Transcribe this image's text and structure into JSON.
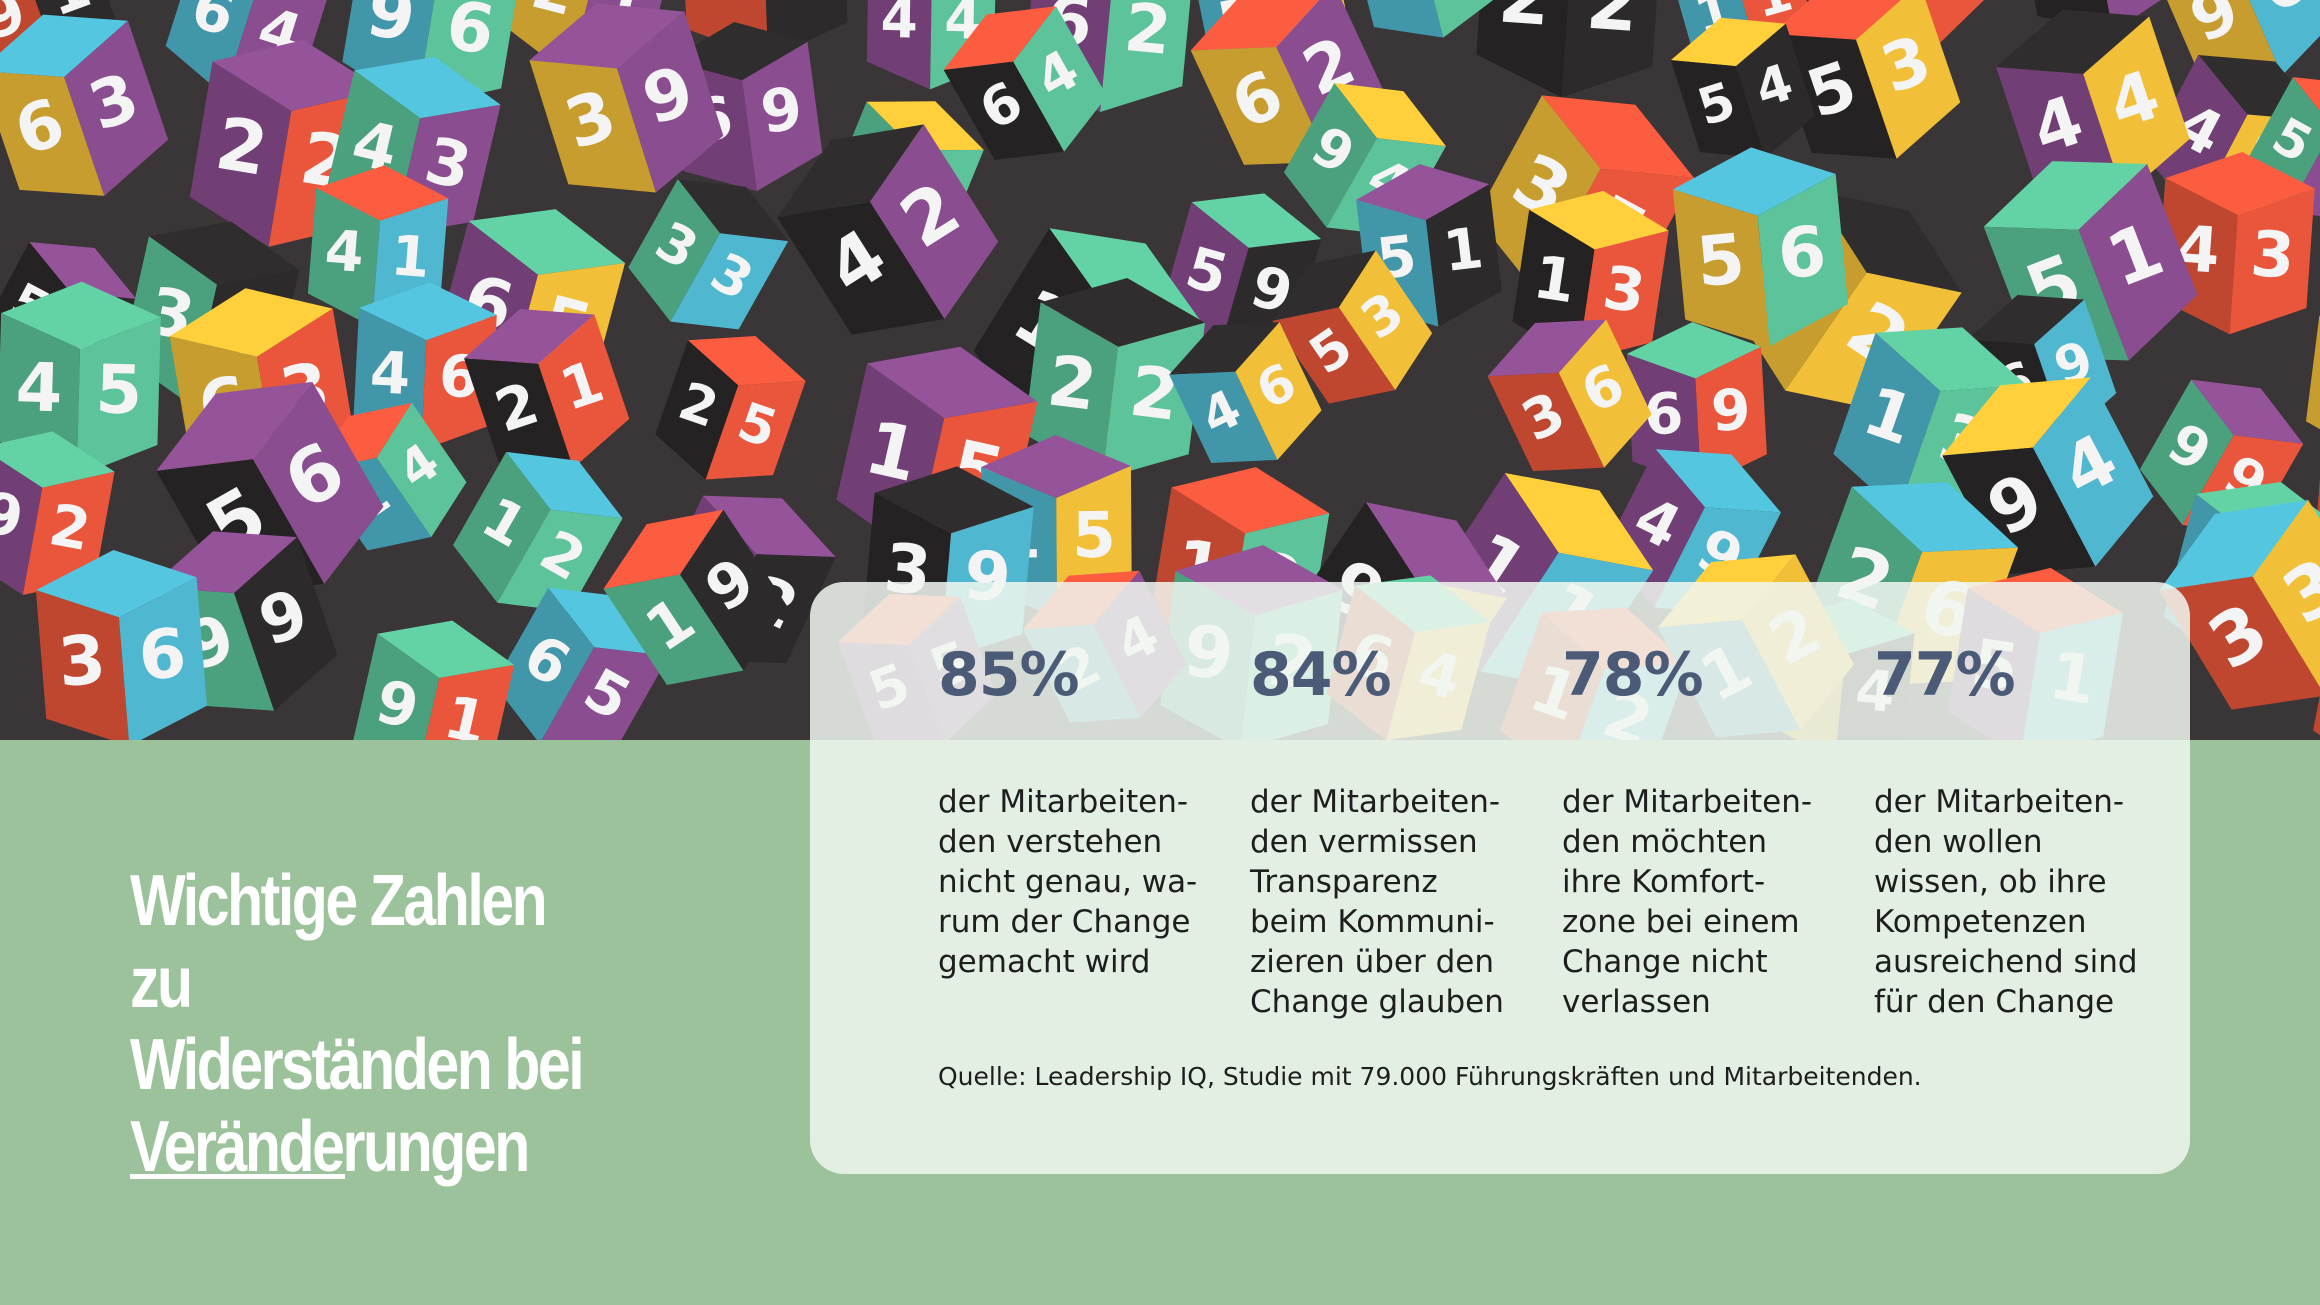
{
  "title": "Wichtige Zahlen zu\nWiderständen bei\nVeränderungen",
  "stats": [
    {
      "value": "85%",
      "text": "der Mitarbeiten-\nden verstehen\nnicht genau, wa-\nrum der Change\ngemacht wird"
    },
    {
      "value": "84%",
      "text": "der Mitarbeiten-\nden vermissen\nTransparenz\nbeim Kommuni-\nzieren über den\nChange glauben"
    },
    {
      "value": "78%",
      "text": "der Mitarbeiten-\nden möchten\nihre Komfort-\nzone bei einem\nChange nicht\nverlassen"
    },
    {
      "value": "77%",
      "text": "der Mitarbeiten-\nden wollen\nwissen, ob ihre\nKompetenzen\nausreichend sind\nfür den Change"
    }
  ],
  "source": "Quelle: Leadership IQ, Studie mit 79.000 Führungskräften und Mitarbeitenden.",
  "colors": {
    "background_green": "#9bc29b",
    "card": "#eef4ee",
    "stat_value": "#4b5a76",
    "cube_colors": [
      "#e9563b",
      "#f2c038",
      "#4fb7cf",
      "#5cc39a",
      "#8a4d8f",
      "#2c2a2b"
    ]
  },
  "hero_image": {
    "depicts": "pile of colorful number cubes",
    "cube_digits": [
      "1",
      "2",
      "3",
      "4",
      "5",
      "6",
      "9"
    ]
  }
}
